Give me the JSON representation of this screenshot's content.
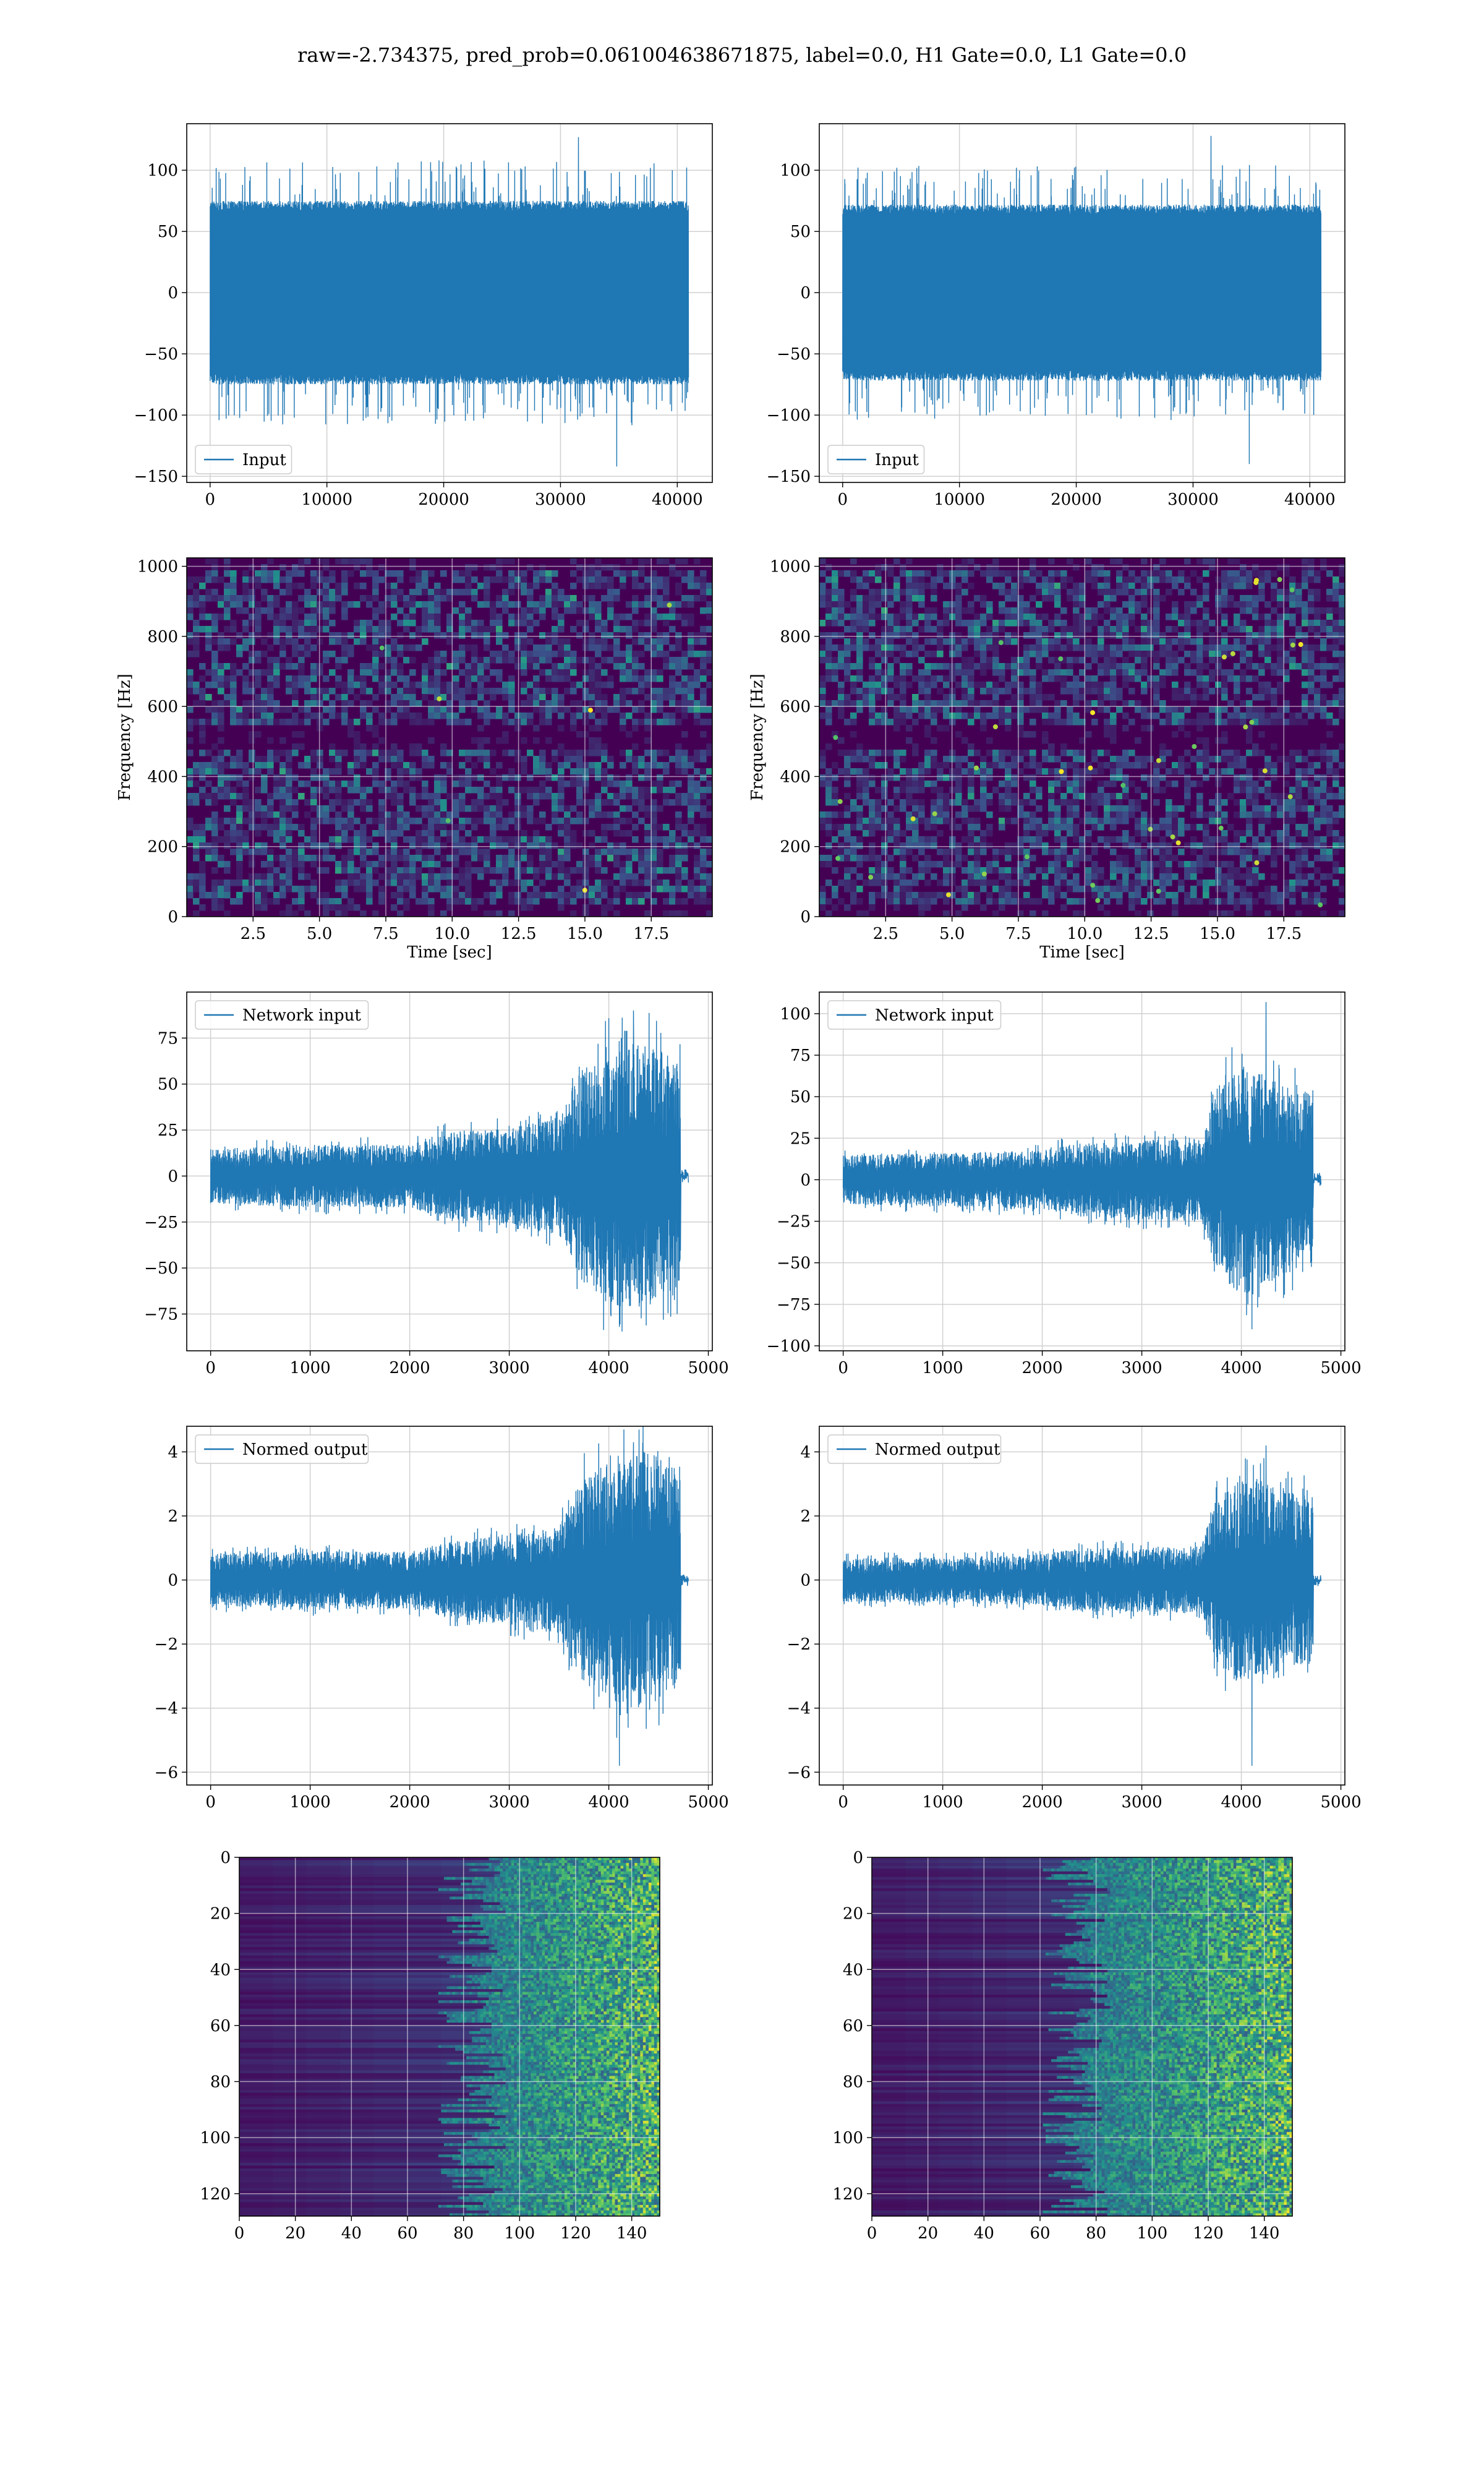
{
  "figure": {
    "title": "raw=-2.734375, pred_prob=0.061004638671875, label=0.0, H1 Gate=0.0, L1 Gate=0.0"
  },
  "colors": {
    "line": "#1f77b4",
    "grid": "#d0d0d0",
    "viridis_low": "#440154",
    "viridis_mid": "#21918c",
    "viridis_high": "#fde725"
  },
  "chart_data": [
    {
      "id": "input-h1",
      "type": "line",
      "kind": "raw",
      "legend": "Input",
      "legend_loc": "lower left",
      "grid": true,
      "xlim": [
        -2000,
        43000
      ],
      "ylim": [
        -155,
        138
      ],
      "xticks": [
        0,
        10000,
        20000,
        30000,
        40000
      ],
      "xticklabels": [
        "0",
        "10000",
        "20000",
        "30000",
        "40000"
      ],
      "yticks": [
        -150,
        -100,
        -50,
        0,
        50,
        100
      ],
      "yticklabels": [
        "−150",
        "−100",
        "−50",
        "0",
        "50",
        "100"
      ],
      "x_range": [
        0,
        40960
      ],
      "core_amplitude": 75,
      "max": 127,
      "min": -142
    },
    {
      "id": "input-l1",
      "type": "line",
      "kind": "raw",
      "legend": "Input",
      "legend_loc": "lower left",
      "grid": true,
      "xlim": [
        -2000,
        43000
      ],
      "ylim": [
        -155,
        138
      ],
      "xticks": [
        0,
        10000,
        20000,
        30000,
        40000
      ],
      "xticklabels": [
        "0",
        "10000",
        "20000",
        "30000",
        "40000"
      ],
      "yticks": [
        -150,
        -100,
        -50,
        0,
        50,
        100
      ],
      "yticklabels": [
        "−150",
        "−100",
        "−50",
        "0",
        "50",
        "100"
      ],
      "x_range": [
        0,
        40960
      ],
      "core_amplitude": 72,
      "max": 128,
      "min": -140
    },
    {
      "id": "spec-h1",
      "type": "heatmap",
      "kind": "spectrogram",
      "ylabel": "Frequency [Hz]",
      "xlabel": "Time [sec]",
      "grid": true,
      "xlim": [
        0,
        19.8
      ],
      "ylim": [
        0,
        1024
      ],
      "xticks": [
        2.5,
        5.0,
        7.5,
        10.0,
        12.5,
        15.0,
        17.5
      ],
      "xticklabels": [
        "2.5",
        "5.0",
        "7.5",
        "10.0",
        "12.5",
        "15.0",
        "17.5"
      ],
      "yticks": [
        0,
        200,
        400,
        600,
        800,
        1000
      ],
      "yticklabels": [
        "0",
        "200",
        "400",
        "600",
        "800",
        "1000"
      ],
      "hot_spots": 6
    },
    {
      "id": "spec-l1",
      "type": "heatmap",
      "kind": "spectrogram",
      "ylabel": "Frequency [Hz]",
      "xlabel": "Time [sec]",
      "grid": true,
      "xlim": [
        0,
        19.8
      ],
      "ylim": [
        0,
        1024
      ],
      "xticks": [
        2.5,
        5.0,
        7.5,
        10.0,
        12.5,
        15.0,
        17.5
      ],
      "xticklabels": [
        "2.5",
        "5.0",
        "7.5",
        "10.0",
        "12.5",
        "15.0",
        "17.5"
      ],
      "yticks": [
        0,
        200,
        400,
        600,
        800,
        1000
      ],
      "yticklabels": [
        "0",
        "200",
        "400",
        "600",
        "800",
        "1000"
      ],
      "hot_spots": 40
    },
    {
      "id": "net-h1",
      "type": "line",
      "kind": "chirp",
      "legend": "Network input",
      "legend_loc": "upper left",
      "grid": true,
      "xlim": [
        -240,
        5040
      ],
      "ylim": [
        -95,
        100
      ],
      "xticks": [
        0,
        1000,
        2000,
        3000,
        4000,
        5000
      ],
      "xticklabels": [
        "0",
        "1000",
        "2000",
        "3000",
        "4000",
        "5000"
      ],
      "yticks": [
        -75,
        -50,
        -25,
        0,
        25,
        50,
        75
      ],
      "yticklabels": [
        "−75",
        "−50",
        "−25",
        "0",
        "25",
        "50",
        "75"
      ],
      "x_end": 4720,
      "tail_end": 4800,
      "envelope": [
        [
          0,
          15
        ],
        [
          1000,
          17
        ],
        [
          2000,
          17
        ],
        [
          2400,
          24
        ],
        [
          3000,
          26
        ],
        [
          3500,
          32
        ],
        [
          3700,
          55
        ],
        [
          4000,
          72
        ],
        [
          4400,
          72
        ],
        [
          4720,
          62
        ]
      ],
      "max": 90,
      "min": -82
    },
    {
      "id": "net-l1",
      "type": "line",
      "kind": "chirp",
      "legend": "Network input",
      "legend_loc": "upper left",
      "grid": true,
      "xlim": [
        -240,
        5040
      ],
      "ylim": [
        -103,
        113
      ],
      "xticks": [
        0,
        1000,
        2000,
        3000,
        4000,
        5000
      ],
      "xticklabels": [
        "0",
        "1000",
        "2000",
        "3000",
        "4000",
        "5000"
      ],
      "yticks": [
        -100,
        -75,
        -50,
        -25,
        0,
        25,
        50,
        75,
        100
      ],
      "yticklabels": [
        "−100",
        "−75",
        "−50",
        "−25",
        "0",
        "25",
        "50",
        "75",
        "100"
      ],
      "x_end": 4720,
      "tail_end": 4800,
      "envelope": [
        [
          0,
          15
        ],
        [
          1000,
          16
        ],
        [
          2000,
          18
        ],
        [
          2400,
          22
        ],
        [
          3000,
          24
        ],
        [
          3600,
          25
        ],
        [
          3750,
          55
        ],
        [
          4000,
          70
        ],
        [
          4400,
          58
        ],
        [
          4720,
          55
        ]
      ],
      "max": 107,
      "min": -90
    },
    {
      "id": "norm-h1",
      "type": "line",
      "kind": "chirp",
      "legend": "Normed output",
      "legend_loc": "upper left",
      "grid": true,
      "xlim": [
        -240,
        5040
      ],
      "ylim": [
        -6.4,
        4.8
      ],
      "xticks": [
        0,
        1000,
        2000,
        3000,
        4000,
        5000
      ],
      "xticklabels": [
        "0",
        "1000",
        "2000",
        "3000",
        "4000",
        "5000"
      ],
      "yticks": [
        -6,
        -4,
        -2,
        0,
        2,
        4
      ],
      "yticklabels": [
        "−6",
        "−4",
        "−2",
        "0",
        "2",
        "4"
      ],
      "x_end": 4720,
      "tail_end": 4800,
      "envelope": [
        [
          0,
          0.8
        ],
        [
          1000,
          0.9
        ],
        [
          2000,
          0.9
        ],
        [
          2400,
          1.2
        ],
        [
          3000,
          1.4
        ],
        [
          3500,
          1.7
        ],
        [
          3700,
          3.0
        ],
        [
          4000,
          4.0
        ],
        [
          4400,
          4.0
        ],
        [
          4720,
          3.4
        ]
      ],
      "max": 4.3,
      "min": -5.8
    },
    {
      "id": "norm-l1",
      "type": "line",
      "kind": "chirp",
      "legend": "Normed output",
      "legend_loc": "upper left",
      "grid": true,
      "xlim": [
        -240,
        5040
      ],
      "ylim": [
        -6.4,
        4.8
      ],
      "xticks": [
        0,
        1000,
        2000,
        3000,
        4000,
        5000
      ],
      "xticklabels": [
        "0",
        "1000",
        "2000",
        "3000",
        "4000",
        "5000"
      ],
      "yticks": [
        -6,
        -4,
        -2,
        0,
        2,
        4
      ],
      "yticklabels": [
        "−6",
        "−4",
        "−2",
        "0",
        "2",
        "4"
      ],
      "x_end": 4720,
      "tail_end": 4800,
      "envelope": [
        [
          0,
          0.7
        ],
        [
          1000,
          0.7
        ],
        [
          2000,
          0.8
        ],
        [
          2400,
          1.0
        ],
        [
          3000,
          1.0
        ],
        [
          3600,
          1.1
        ],
        [
          3750,
          2.6
        ],
        [
          4000,
          3.4
        ],
        [
          4400,
          2.8
        ],
        [
          4720,
          2.6
        ]
      ],
      "max": 4.2,
      "min": -5.8
    },
    {
      "id": "feat-h1",
      "type": "heatmap",
      "kind": "feature-map",
      "grid": true,
      "xlim": [
        0,
        150
      ],
      "ylim": [
        0,
        128
      ],
      "y_inverted": true,
      "xticks": [
        0,
        20,
        40,
        60,
        80,
        100,
        120,
        140
      ],
      "xticklabels": [
        "0",
        "20",
        "40",
        "60",
        "80",
        "100",
        "120",
        "140"
      ],
      "yticks": [
        0,
        20,
        40,
        60,
        80,
        100,
        120
      ],
      "yticklabels": [
        "0",
        "20",
        "40",
        "60",
        "80",
        "100",
        "120"
      ],
      "activity_onset": 95
    },
    {
      "id": "feat-l1",
      "type": "heatmap",
      "kind": "feature-map",
      "grid": true,
      "xlim": [
        0,
        150
      ],
      "ylim": [
        0,
        128
      ],
      "y_inverted": true,
      "xticks": [
        0,
        20,
        40,
        60,
        80,
        100,
        120,
        140
      ],
      "xticklabels": [
        "0",
        "20",
        "40",
        "60",
        "80",
        "100",
        "120",
        "140"
      ],
      "yticks": [
        0,
        20,
        40,
        60,
        80,
        100,
        120
      ],
      "yticklabels": [
        "0",
        "20",
        "40",
        "60",
        "80",
        "100",
        "120"
      ],
      "activity_onset": 85
    }
  ]
}
